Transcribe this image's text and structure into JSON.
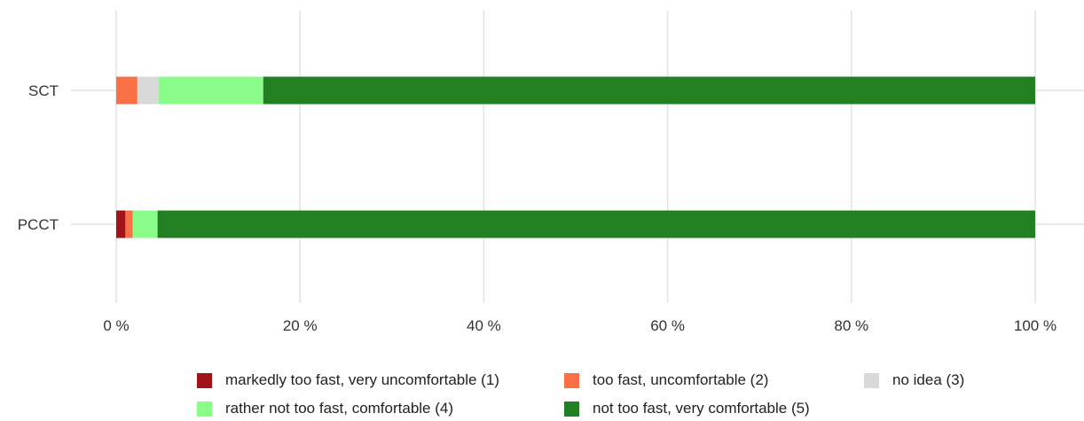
{
  "chart_data": {
    "type": "bar",
    "orientation": "horizontal",
    "stacked": true,
    "categories": [
      "SCT",
      "PCCT"
    ],
    "xlim": [
      0,
      100
    ],
    "x_ticks": [
      0,
      20,
      40,
      60,
      80,
      100
    ],
    "x_tick_labels": [
      "0 %",
      "20 %",
      "40 %",
      "60 %",
      "80 %",
      "100 %"
    ],
    "grid": true,
    "legend_position": "bottom",
    "series": [
      {
        "name": "markedly too fast, very uncomfortable (1)",
        "color": "#a01419",
        "values": [
          0,
          1.0
        ]
      },
      {
        "name": "too fast, uncomfortable (2)",
        "color": "#fa7046",
        "values": [
          2.3,
          0.8
        ]
      },
      {
        "name": "no idea (3)",
        "color": "#d9d9d9",
        "values": [
          2.3,
          0
        ]
      },
      {
        "name": "rather not too fast, comfortable (4)",
        "color": "#8afc8a",
        "values": [
          11.4,
          2.7
        ]
      },
      {
        "name": "not too fast, very comfortable (5)",
        "color": "#228022",
        "values": [
          84.0,
          95.5
        ]
      }
    ]
  }
}
